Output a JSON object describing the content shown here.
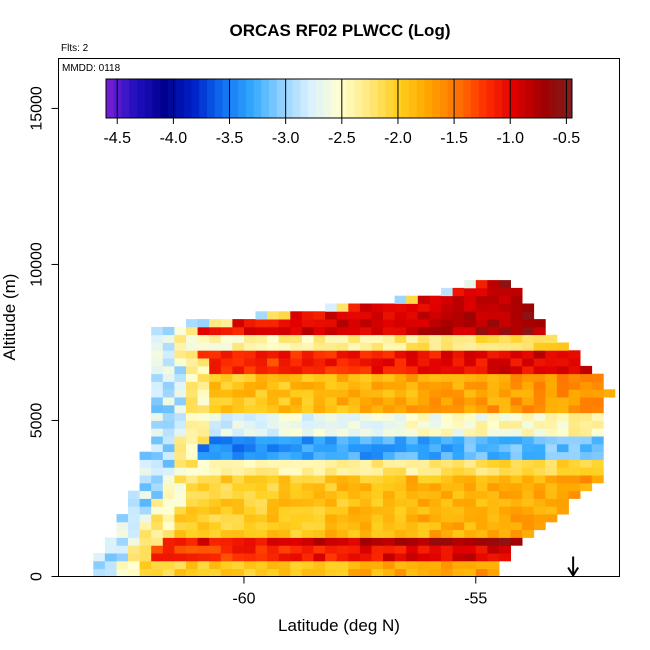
{
  "chart_data": {
    "type": "heatmap",
    "title": "ORCAS RF02 PLWCC (Log)",
    "annotations": {
      "flights": "Flts: 2",
      "date": "MMDD: 0118"
    },
    "xlabel": "Latitude (deg N)",
    "ylabel": "Altitude (m)",
    "xlim": [
      -64.0,
      -51.9
    ],
    "ylim": [
      0,
      16600
    ],
    "xticks": [
      -60,
      -55
    ],
    "xtick_labels": [
      "-60",
      "-55"
    ],
    "yticks": [
      0,
      5000,
      10000,
      15000
    ],
    "ytick_labels": [
      "0",
      "5000",
      "10000",
      "15000"
    ],
    "colorbar": {
      "range": [
        -4.6,
        -0.45
      ],
      "ticks": [
        -4.5,
        -4.0,
        -3.5,
        -3.0,
        -2.5,
        -2.0,
        -1.5,
        -1.0,
        -0.5
      ],
      "tick_labels": [
        "-4.5",
        "-4.0",
        "-3.5",
        "-3.0",
        "-2.5",
        "-2.0",
        "-1.5",
        "-1.0",
        "-0.5"
      ],
      "colors": [
        "#7a1fd6",
        "#2010c0",
        "#000090",
        "#0020c8",
        "#1070f0",
        "#30a8ff",
        "#90d0ff",
        "#d8f0ff",
        "#ffffd0",
        "#ffe880",
        "#ffd020",
        "#ffa800",
        "#ff7800",
        "#ff3000",
        "#e00000",
        "#a00000",
        "#802020"
      ]
    },
    "grid_resolution": {
      "dlat": 0.25,
      "dalt": 250
    },
    "cloud_profile": [
      {
        "alt": 0,
        "lat_min": -63.3,
        "lat_max": -54.7,
        "value": -1.8
      },
      {
        "alt": 1000,
        "lat_min": -62.9,
        "lat_max": -54.2,
        "value": -1.1
      },
      {
        "alt": 2000,
        "lat_min": -62.5,
        "lat_max": -53.3,
        "value": -1.9
      },
      {
        "alt": 3000,
        "lat_min": -62.2,
        "lat_max": -52.5,
        "value": -2.0
      },
      {
        "alt": 4000,
        "lat_min": -62.0,
        "lat_max": -52.4,
        "value": -3.8
      },
      {
        "alt": 5000,
        "lat_min": -61.8,
        "lat_max": -52.4,
        "value": -1.8
      },
      {
        "alt": 6000,
        "lat_min": -61.8,
        "lat_max": -52.2,
        "value": -1.7
      },
      {
        "alt": 7000,
        "lat_min": -61.9,
        "lat_max": -52.9,
        "value": -1.4
      },
      {
        "alt": 8000,
        "lat_min": -62.0,
        "lat_max": -53.6,
        "value": -1.1
      },
      {
        "alt": 9000,
        "lat_min": -56.0,
        "lat_max": -54.1,
        "value": -0.7
      },
      {
        "alt": 9500,
        "lat_min": -54.9,
        "lat_max": -54.6,
        "value": -0.6
      }
    ],
    "bands": [
      {
        "alt": [
          0,
          500
        ],
        "value": -1.9
      },
      {
        "alt": [
          600,
          900
        ],
        "value": -1.1
      },
      {
        "alt": [
          1000,
          1250
        ],
        "value": -0.9
      },
      {
        "alt": [
          1300,
          3200
        ],
        "value": -1.9
      },
      {
        "alt": [
          3300,
          3600
        ],
        "value": -2.3
      },
      {
        "alt": [
          3700,
          4500
        ],
        "value": -3.3
      },
      {
        "alt": [
          4600,
          5200
        ],
        "value": -2.6
      },
      {
        "alt": [
          5300,
          6400
        ],
        "value": -1.8
      },
      {
        "alt": [
          6500,
          7200
        ],
        "value": -1.1
      },
      {
        "alt": [
          7300,
          7700
        ],
        "value": -2.3
      },
      {
        "alt": [
          7800,
          9600
        ],
        "value": -0.9
      }
    ],
    "arrow_marker_lat": -52.9
  }
}
